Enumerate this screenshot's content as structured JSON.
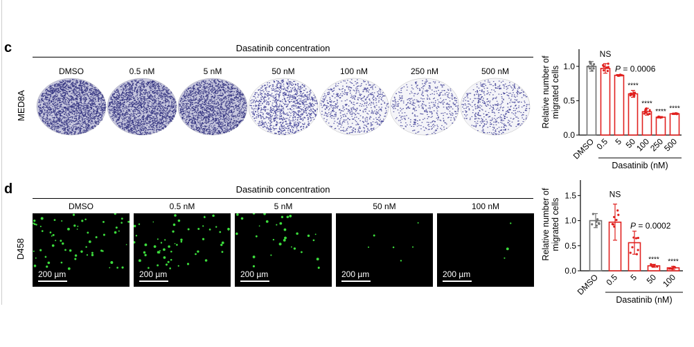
{
  "panels": [
    {
      "letter": "c",
      "header": "Dasatinib concentration",
      "row_label": "MED8A",
      "conditions": [
        "DMSO",
        "0.5 nM",
        "5 nM",
        "50 nM",
        "100 nM",
        "250 nM",
        "500 nM"
      ],
      "density": [
        1.0,
        0.95,
        0.85,
        0.55,
        0.32,
        0.24,
        0.28
      ]
    },
    {
      "letter": "d",
      "header": "Dasatinib concentration",
      "row_label": "D458",
      "conditions": [
        "DMSO",
        "0.5 nM",
        "5 nM",
        "50 nM",
        "100 nM"
      ],
      "scale_bar": "200 µm",
      "cell_counts": [
        60,
        55,
        30,
        6,
        3
      ]
    }
  ],
  "chart_data": [
    {
      "type": "bar",
      "ylabel": "Relative number of migrated cells",
      "xlabel": "Dasatinib (nM)",
      "categories": [
        "DMSO",
        "0.5",
        "5",
        "50",
        "100",
        "250",
        "500"
      ],
      "values": [
        1.0,
        0.97,
        0.87,
        0.6,
        0.34,
        0.26,
        0.31
      ],
      "errors": [
        0.07,
        0.07,
        0.01,
        0.05,
        0.05,
        0.01,
        0.01
      ],
      "yticks": [
        "0.0",
        "0.5",
        "1.0"
      ],
      "ylim": [
        0,
        1.25
      ],
      "annotations": [
        "",
        "NS",
        "P = 0.0006",
        "****",
        "****",
        "****",
        "****"
      ],
      "colors": {
        "control": "#707070",
        "treated": "#e0201e"
      }
    },
    {
      "type": "bar",
      "ylabel": "Relative number of migrated cells",
      "xlabel": "Dasatinib (nM)",
      "categories": [
        "DMSO",
        "0.5",
        "5",
        "50",
        "100"
      ],
      "values": [
        1.0,
        0.97,
        0.56,
        0.1,
        0.06
      ],
      "errors": [
        0.14,
        0.36,
        0.23,
        0.03,
        0.03
      ],
      "yticks": [
        "0.0",
        "0.5",
        "1.0",
        "1.5"
      ],
      "ylim": [
        0,
        1.85
      ],
      "annotations": [
        "",
        "NS",
        "P = 0.0002",
        "****",
        "****"
      ],
      "colors": {
        "control": "#707070",
        "treated": "#e0201e"
      }
    }
  ]
}
